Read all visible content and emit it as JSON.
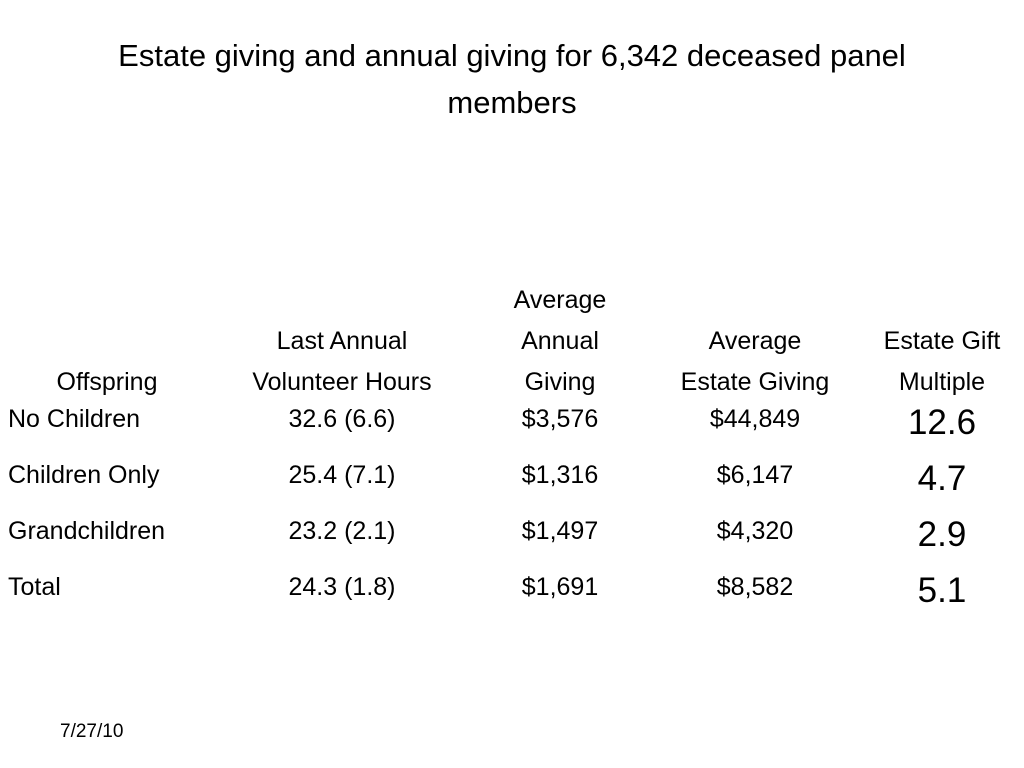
{
  "slide": {
    "title": "Estate giving and annual giving for 6,342 deceased panel members",
    "date": "7/27/10"
  },
  "table": {
    "headers": {
      "offspring": [
        "Offspring"
      ],
      "hours": [
        "Last Annual",
        "Volunteer Hours"
      ],
      "annual": [
        "Average",
        "Annual",
        "Giving"
      ],
      "estate": [
        "Average",
        "Estate Giving"
      ],
      "multiple": [
        "Estate Gift",
        "Multiple"
      ]
    },
    "rows": [
      {
        "offspring": "No Children",
        "hours": "32.6 (6.6)",
        "annual": "$3,576",
        "estate": "$44,849",
        "multiple": "12.6"
      },
      {
        "offspring": "Children Only",
        "hours": "25.4 (7.1)",
        "annual": "$1,316",
        "estate": "$6,147",
        "multiple": "4.7"
      },
      {
        "offspring": "Grandchildren",
        "hours": "23.2 (2.1)",
        "annual": "$1,497",
        "estate": "$4,320",
        "multiple": "2.9"
      },
      {
        "offspring": "Total",
        "hours": "24.3 (1.8)",
        "annual": "$1,691",
        "estate": "$8,582",
        "multiple": "5.1"
      }
    ]
  }
}
